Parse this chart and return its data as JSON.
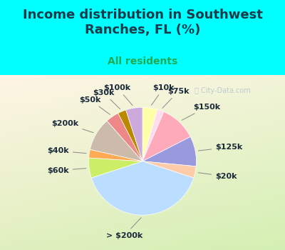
{
  "title": "Income distribution in Southwest\nRanches, FL (%)",
  "subtitle": "All residents",
  "watermark": "ⓘ City-Data.com",
  "slices": [
    {
      "label": "$10k",
      "value": 4.5,
      "color": "#ffffaa"
    },
    {
      "label": "$75k",
      "value": 2.0,
      "color": "#ffddee"
    },
    {
      "label": "$150k",
      "value": 11.0,
      "color": "#ffaabb"
    },
    {
      "label": "$125k",
      "value": 9.0,
      "color": "#9999dd"
    },
    {
      "label": "$20k",
      "value": 3.5,
      "color": "#ffccaa"
    },
    {
      "label": "> $200k",
      "value": 40.0,
      "color": "#bbddff"
    },
    {
      "label": "$60k",
      "value": 6.0,
      "color": "#ccee66"
    },
    {
      "label": "$40k",
      "value": 2.5,
      "color": "#ffaa55"
    },
    {
      "label": "$200k",
      "value": 10.0,
      "color": "#ccbbaa"
    },
    {
      "label": "$50k",
      "value": 4.0,
      "color": "#ee8888"
    },
    {
      "label": "$30k",
      "value": 2.5,
      "color": "#bb8800"
    },
    {
      "label": "$100k",
      "value": 5.0,
      "color": "#ccaadd"
    }
  ],
  "bg_top": "#00ffff",
  "bg_chart_top": "#e0f5f0",
  "bg_chart_bottom": "#d8f0d8",
  "title_color": "#1a3a4a",
  "subtitle_color": "#22aa55",
  "label_color": "#1a2a3a",
  "title_fontsize": 13,
  "subtitle_fontsize": 10,
  "label_fontsize": 8,
  "startangle": 90
}
